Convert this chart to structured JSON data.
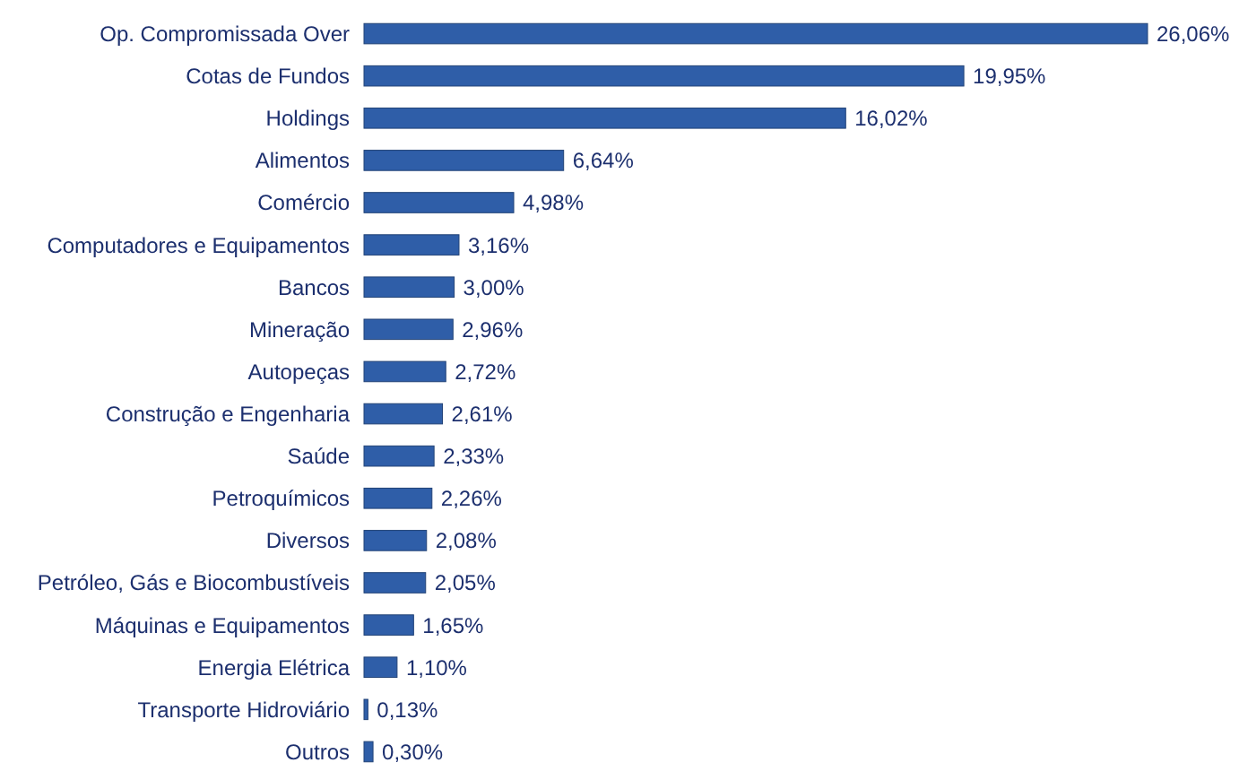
{
  "chart_data": {
    "type": "bar",
    "orientation": "horizontal",
    "categories": [
      "Op. Compromissada Over",
      "Cotas de Fundos",
      "Holdings",
      "Alimentos",
      "Comércio",
      "Computadores e Equipamentos",
      "Bancos",
      "Mineração",
      "Autopeças",
      "Construção e Engenharia",
      "Saúde",
      "Petroquímicos",
      "Diversos",
      "Petróleo, Gás e Biocombustíveis",
      "Máquinas e Equipamentos",
      "Energia Elétrica",
      "Transporte Hidroviário",
      "Outros"
    ],
    "values": [
      26.06,
      19.95,
      16.02,
      6.64,
      4.98,
      3.16,
      3.0,
      2.96,
      2.72,
      2.61,
      2.33,
      2.26,
      2.08,
      2.05,
      1.65,
      1.1,
      0.13,
      0.3
    ],
    "value_labels": [
      "26,06%",
      "19,95%",
      "16,02%",
      "6,64%",
      "4,98%",
      "3,16%",
      "3,00%",
      "2,96%",
      "2,72%",
      "2,61%",
      "2,33%",
      "2,26%",
      "2,08%",
      "2,05%",
      "1,65%",
      "1,10%",
      "0,13%",
      "0,30%"
    ],
    "color": "#2f5ea8"
  }
}
